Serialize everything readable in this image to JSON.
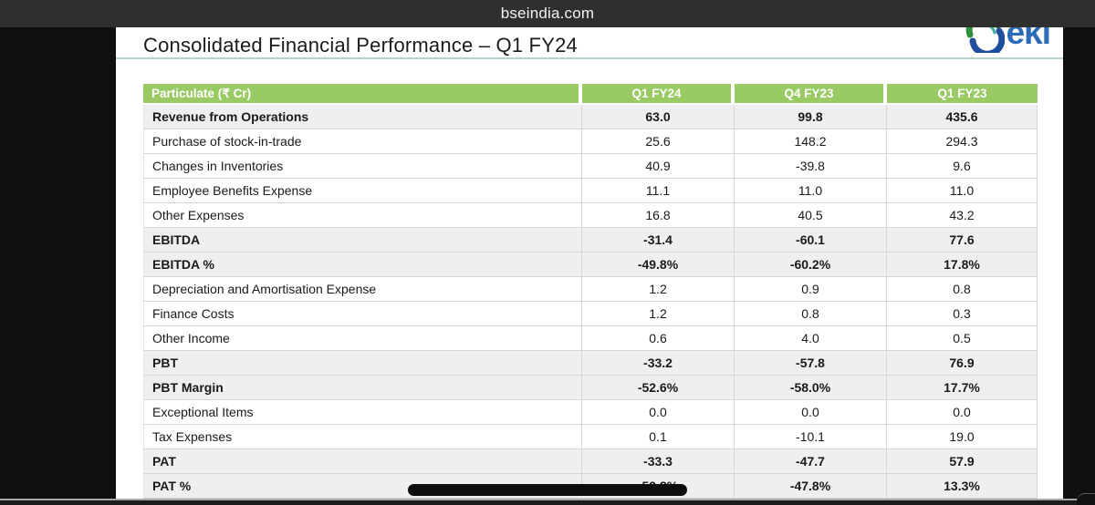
{
  "browser_bar": {
    "url": "bseindia.com"
  },
  "slide": {
    "title": "Consolidated Financial Performance – Q1 FY24",
    "logo_text": "eki"
  },
  "table": {
    "headers": [
      "Particulate (₹ Cr)",
      "Q1 FY24",
      "Q4 FY23",
      "Q1 FY23"
    ],
    "rows": [
      {
        "label": "Revenue from Operations",
        "values": [
          "63.0",
          "99.8",
          "435.6"
        ],
        "emphasis": true
      },
      {
        "label": "Purchase of stock-in-trade",
        "values": [
          "25.6",
          "148.2",
          "294.3"
        ],
        "emphasis": false
      },
      {
        "label": "Changes in Inventories",
        "values": [
          "40.9",
          "-39.8",
          "9.6"
        ],
        "emphasis": false
      },
      {
        "label": "Employee Benefits Expense",
        "values": [
          "11.1",
          "11.0",
          "11.0"
        ],
        "emphasis": false
      },
      {
        "label": "Other Expenses",
        "values": [
          "16.8",
          "40.5",
          "43.2"
        ],
        "emphasis": false
      },
      {
        "label": "EBITDA",
        "values": [
          "-31.4",
          "-60.1",
          "77.6"
        ],
        "emphasis": true
      },
      {
        "label": "EBITDA %",
        "values": [
          "-49.8%",
          "-60.2%",
          "17.8%"
        ],
        "emphasis": true
      },
      {
        "label": "Depreciation and Amortisation Expense",
        "values": [
          "1.2",
          "0.9",
          "0.8"
        ],
        "emphasis": false
      },
      {
        "label": "Finance Costs",
        "values": [
          "1.2",
          "0.8",
          "0.3"
        ],
        "emphasis": false
      },
      {
        "label": "Other Income",
        "values": [
          "0.6",
          "4.0",
          "0.5"
        ],
        "emphasis": false
      },
      {
        "label": "PBT",
        "values": [
          "-33.2",
          "-57.8",
          "76.9"
        ],
        "emphasis": true
      },
      {
        "label": "PBT Margin",
        "values": [
          "-52.6%",
          "-58.0%",
          "17.7%"
        ],
        "emphasis": true
      },
      {
        "label": "Exceptional Items",
        "values": [
          "0.0",
          "0.0",
          "0.0"
        ],
        "emphasis": false
      },
      {
        "label": "Tax Expenses",
        "values": [
          "0.1",
          "-10.1",
          "19.0"
        ],
        "emphasis": false
      },
      {
        "label": "PAT",
        "values": [
          "-33.3",
          "-47.7",
          "57.9"
        ],
        "emphasis": true
      },
      {
        "label": "PAT %",
        "values": [
          "-52.8%",
          "-47.8%",
          "13.3%"
        ],
        "emphasis": true
      }
    ]
  },
  "colors": {
    "header_green": "#9ACA64",
    "emphasis_row_bg": "#EFEFEF",
    "accent_rule": "#B7D3C6",
    "logo_blue": "#2A6CB5",
    "logo_green": "#2F8F3C",
    "logo_dark_blue": "#1F4E9E"
  }
}
